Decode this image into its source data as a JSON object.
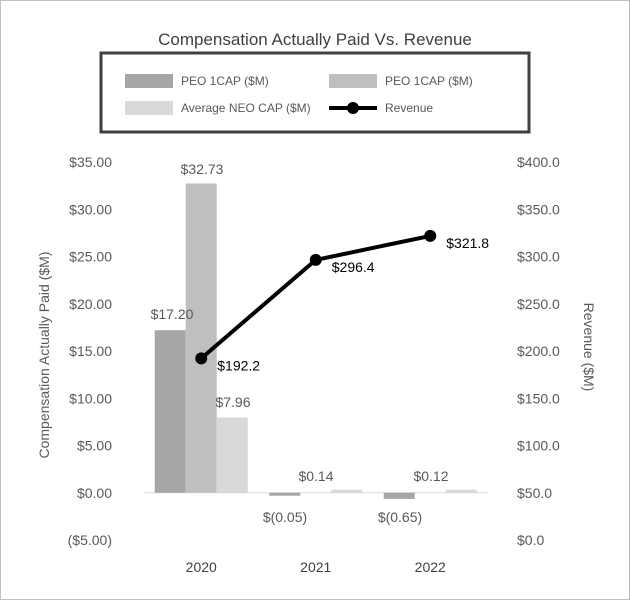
{
  "chart_data": {
    "type": "bar",
    "title": "Compensation Actually Paid Vs. Revenue",
    "categories": [
      "2020",
      "2021",
      "2022"
    ],
    "series": [
      {
        "name": "PEO 1CAP ($M)",
        "kind": "bar",
        "axis": "left",
        "color": "#a6a6a6",
        "values": [
          17.2,
          -0.05,
          -0.65
        ],
        "labels": [
          "$17.20",
          "$(0.05)",
          "$(0.65)"
        ]
      },
      {
        "name": "PEO 1CAP ($M)",
        "kind": "bar",
        "axis": "left",
        "color": "#bfbfbf",
        "values": [
          32.73,
          0.0,
          0.0
        ],
        "labels": [
          "$32.73",
          "",
          ""
        ]
      },
      {
        "name": "Average NEO CAP ($M)",
        "kind": "bar",
        "axis": "left",
        "color": "#d9d9d9",
        "values": [
          7.96,
          0.14,
          0.12
        ],
        "labels": [
          "$7.96",
          "$0.14",
          "$0.12"
        ]
      },
      {
        "name": "Revenue",
        "kind": "line",
        "axis": "right",
        "color": "#000000",
        "values": [
          192.2,
          296.4,
          321.8
        ],
        "labels": [
          "$192.2",
          "$296.4",
          "$321.8"
        ]
      }
    ],
    "ylabel": "Compensation Actually Paid ($M)",
    "ylabel_right": "Revenue ($M)",
    "ylim": [
      -5,
      35
    ],
    "ylim_right": [
      0,
      400
    ],
    "yticks": [
      35,
      30,
      25,
      20,
      15,
      10,
      5,
      0,
      -5
    ],
    "ytick_labels": [
      "$35.00",
      "$30.00",
      "$25.00",
      "$20.00",
      "$15.00",
      "$10.00",
      "$5.00",
      "$0.00",
      "($5.00)"
    ],
    "yticks_right": [
      400,
      350,
      300,
      250,
      200,
      150,
      100,
      50,
      0
    ],
    "ytick_labels_right": [
      "$400.0",
      "$350.0",
      "$300.0",
      "$250.0",
      "$200.0",
      "$150.0",
      "$100.0",
      "$50.0",
      "$0.0"
    ],
    "grid": false,
    "legend_position": "top",
    "legend": [
      {
        "label": "PEO 1CAP ($M)",
        "swatch": "box",
        "color": "#a6a6a6"
      },
      {
        "label": "PEO 1CAP ($M)",
        "swatch": "box",
        "color": "#bfbfbf"
      },
      {
        "label": "Average NEO CAP ($M)",
        "swatch": "box",
        "color": "#d9d9d9"
      },
      {
        "label": "Revenue",
        "swatch": "line",
        "color": "#000000"
      }
    ]
  }
}
